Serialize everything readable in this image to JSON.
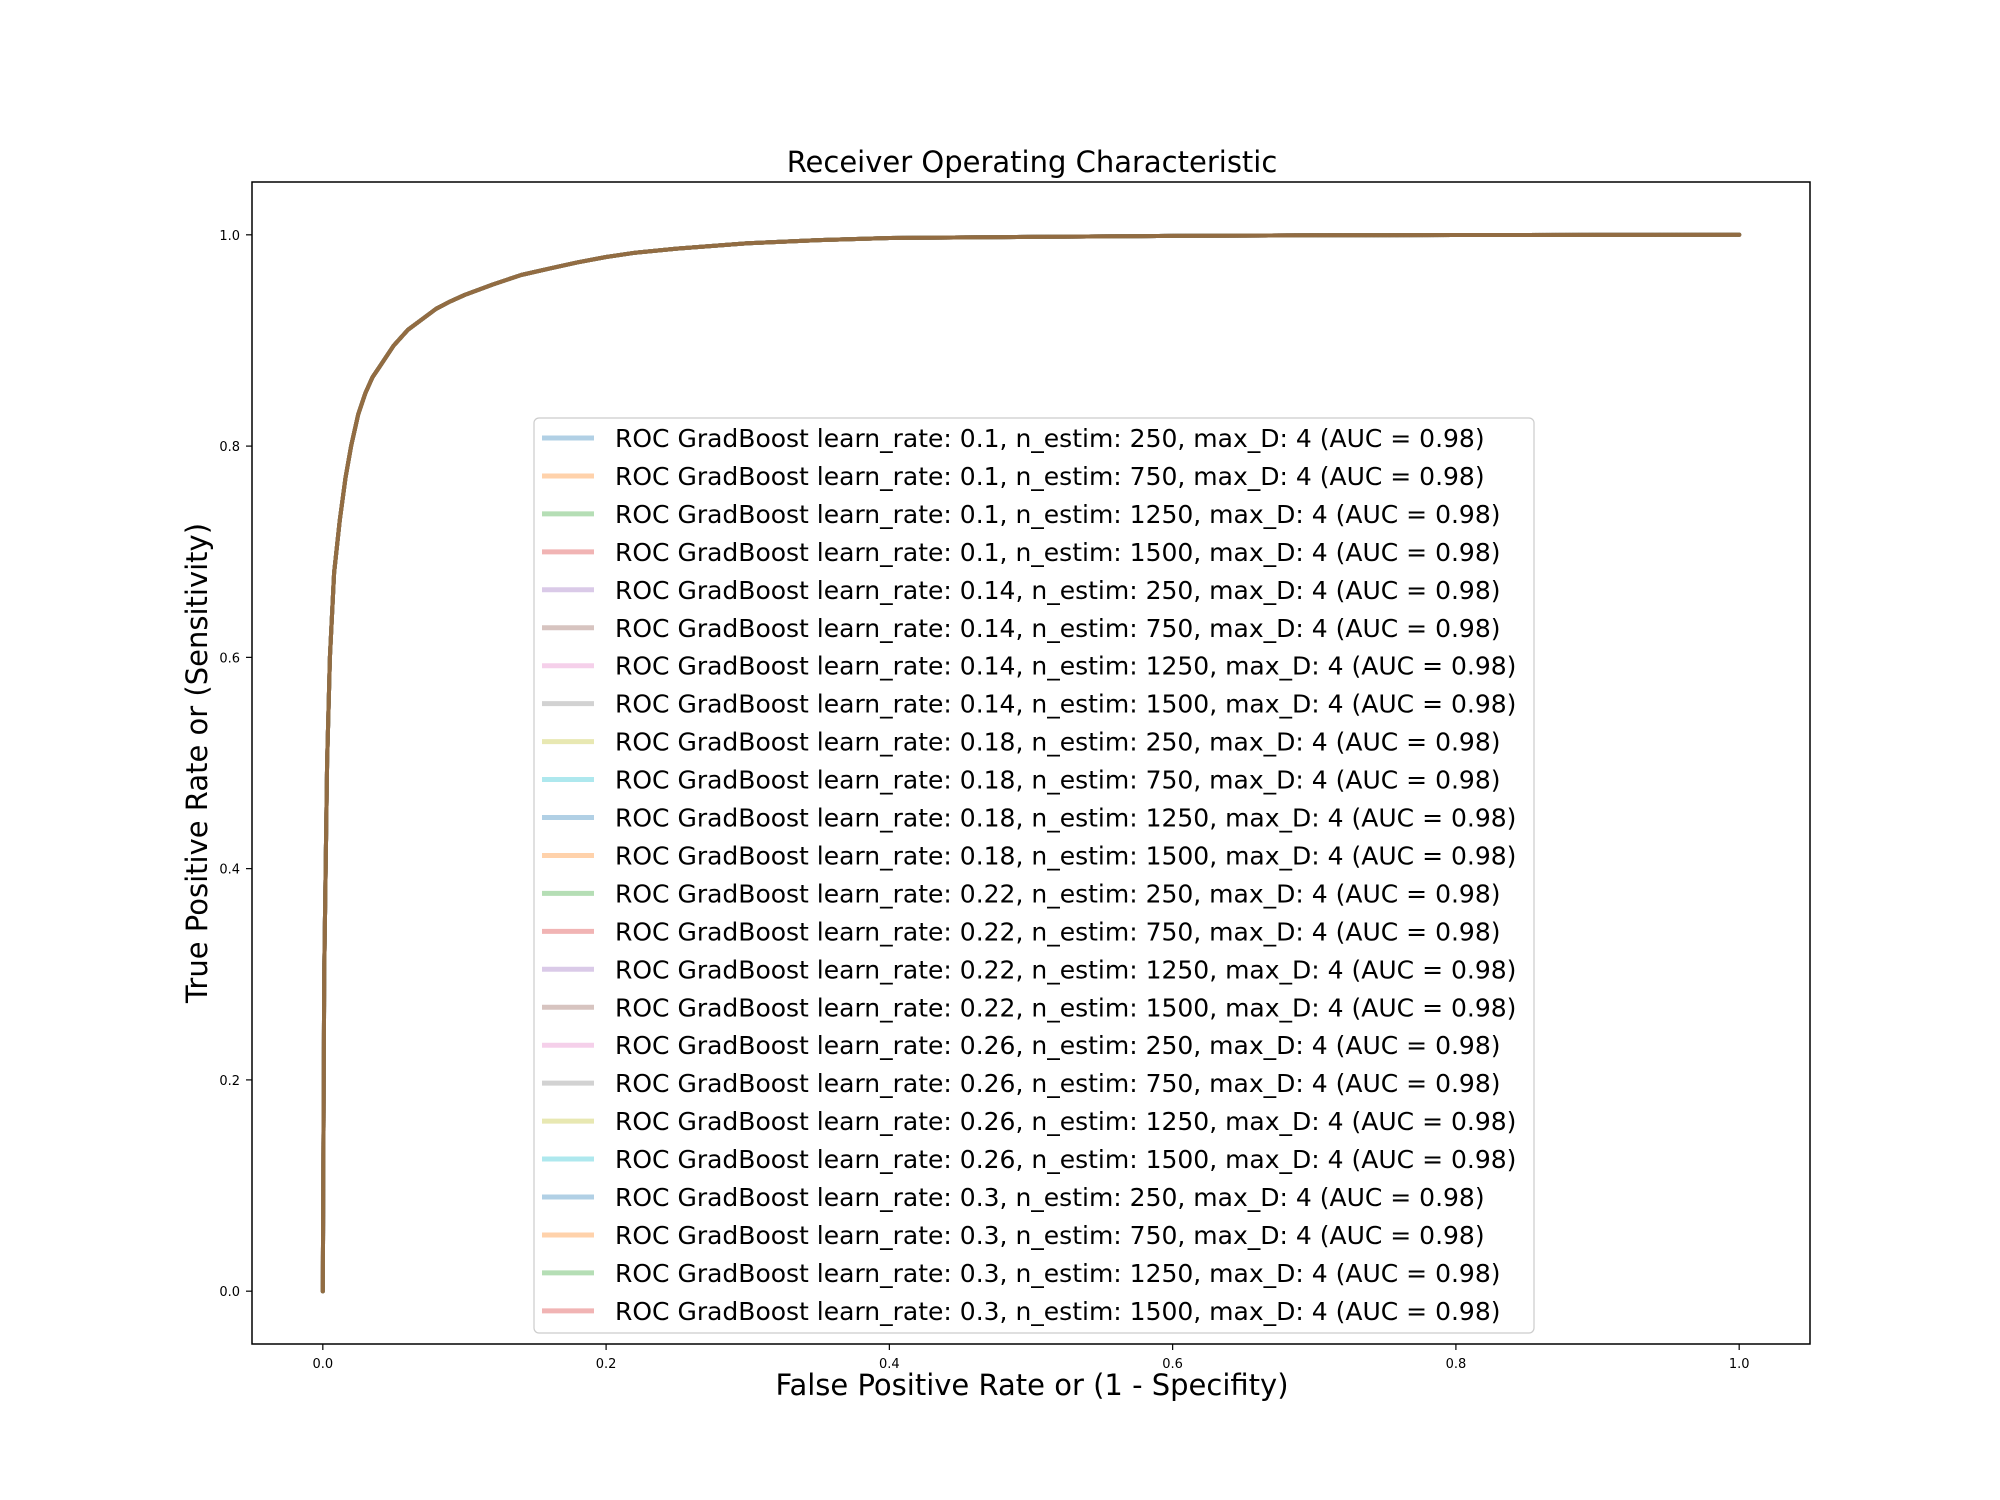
{
  "chart_data": {
    "type": "line",
    "title": "Receiver Operating Characteristic",
    "xlabel": "False Positive Rate or (1 - Specifity)",
    "ylabel": "True Positive Rate or (Sensitivity)",
    "xlim": [
      -0.05,
      1.05
    ],
    "ylim": [
      -0.05,
      1.05
    ],
    "x_ticks": [
      "0.0",
      "0.2",
      "0.4",
      "0.6",
      "0.8",
      "1.0"
    ],
    "y_ticks": [
      "0.0",
      "0.2",
      "0.4",
      "0.6",
      "0.8",
      "1.0"
    ],
    "grid": false,
    "legend_position": "lower-center",
    "roc_curve": {
      "x": [
        0,
        0.001,
        0.003,
        0.005,
        0.008,
        0.012,
        0.016,
        0.02,
        0.025,
        0.03,
        0.035,
        0.04,
        0.05,
        0.06,
        0.07,
        0.08,
        0.09,
        0.1,
        0.12,
        0.14,
        0.16,
        0.18,
        0.2,
        0.22,
        0.25,
        0.3,
        0.35,
        0.4,
        0.5,
        0.6,
        0.7,
        0.8,
        0.9,
        1.0
      ],
      "y": [
        0,
        0.3,
        0.5,
        0.6,
        0.68,
        0.73,
        0.77,
        0.8,
        0.83,
        0.85,
        0.865,
        0.875,
        0.895,
        0.91,
        0.92,
        0.93,
        0.937,
        0.943,
        0.953,
        0.962,
        0.968,
        0.974,
        0.979,
        0.983,
        0.987,
        0.992,
        0.995,
        0.997,
        0.998,
        0.999,
        0.9995,
        0.9998,
        0.9999,
        1.0
      ]
    },
    "series": [
      {
        "name": "ROC GradBoost learn_rate: 0.1, n_estim: 250, max_D: 4 (AUC = 0.98)",
        "color": "#1f77b4"
      },
      {
        "name": "ROC GradBoost learn_rate: 0.1, n_estim: 750, max_D: 4 (AUC = 0.98)",
        "color": "#ff7f0e"
      },
      {
        "name": "ROC GradBoost learn_rate: 0.1, n_estim: 1250, max_D: 4 (AUC = 0.98)",
        "color": "#2ca02c"
      },
      {
        "name": "ROC GradBoost learn_rate: 0.1, n_estim: 1500, max_D: 4 (AUC = 0.98)",
        "color": "#d62728"
      },
      {
        "name": "ROC GradBoost learn_rate: 0.14, n_estim: 250, max_D: 4 (AUC = 0.98)",
        "color": "#9467bd"
      },
      {
        "name": "ROC GradBoost learn_rate: 0.14, n_estim: 750, max_D: 4 (AUC = 0.98)",
        "color": "#8c564b"
      },
      {
        "name": "ROC GradBoost learn_rate: 0.14, n_estim: 1250, max_D: 4 (AUC = 0.98)",
        "color": "#e377c2"
      },
      {
        "name": "ROC GradBoost learn_rate: 0.14, n_estim: 1500, max_D: 4 (AUC = 0.98)",
        "color": "#7f7f7f"
      },
      {
        "name": "ROC GradBoost learn_rate: 0.18, n_estim: 250, max_D: 4 (AUC = 0.98)",
        "color": "#bcbd22"
      },
      {
        "name": "ROC GradBoost learn_rate: 0.18, n_estim: 750, max_D: 4 (AUC = 0.98)",
        "color": "#17becf"
      },
      {
        "name": "ROC GradBoost learn_rate: 0.18, n_estim: 1250, max_D: 4 (AUC = 0.98)",
        "color": "#1f77b4"
      },
      {
        "name": "ROC GradBoost learn_rate: 0.18, n_estim: 1500, max_D: 4 (AUC = 0.98)",
        "color": "#ff7f0e"
      },
      {
        "name": "ROC GradBoost learn_rate: 0.22, n_estim: 250, max_D: 4 (AUC = 0.98)",
        "color": "#2ca02c"
      },
      {
        "name": "ROC GradBoost learn_rate: 0.22, n_estim: 750, max_D: 4 (AUC = 0.98)",
        "color": "#d62728"
      },
      {
        "name": "ROC GradBoost learn_rate: 0.22, n_estim: 1250, max_D: 4 (AUC = 0.98)",
        "color": "#9467bd"
      },
      {
        "name": "ROC GradBoost learn_rate: 0.22, n_estim: 1500, max_D: 4 (AUC = 0.98)",
        "color": "#8c564b"
      },
      {
        "name": "ROC GradBoost learn_rate: 0.26, n_estim: 250, max_D: 4 (AUC = 0.98)",
        "color": "#e377c2"
      },
      {
        "name": "ROC GradBoost learn_rate: 0.26, n_estim: 750, max_D: 4 (AUC = 0.98)",
        "color": "#7f7f7f"
      },
      {
        "name": "ROC GradBoost learn_rate: 0.26, n_estim: 1250, max_D: 4 (AUC = 0.98)",
        "color": "#bcbd22"
      },
      {
        "name": "ROC GradBoost learn_rate: 0.26, n_estim: 1500, max_D: 4 (AUC = 0.98)",
        "color": "#17becf"
      },
      {
        "name": "ROC GradBoost learn_rate: 0.3, n_estim: 250, max_D: 4 (AUC = 0.98)",
        "color": "#1f77b4"
      },
      {
        "name": "ROC GradBoost learn_rate: 0.3, n_estim: 750, max_D: 4 (AUC = 0.98)",
        "color": "#ff7f0e"
      },
      {
        "name": "ROC GradBoost learn_rate: 0.3, n_estim: 1250, max_D: 4 (AUC = 0.98)",
        "color": "#2ca02c"
      },
      {
        "name": "ROC GradBoost learn_rate: 0.3, n_estim: 1500, max_D: 4 (AUC = 0.98)",
        "color": "#d62728"
      }
    ]
  }
}
